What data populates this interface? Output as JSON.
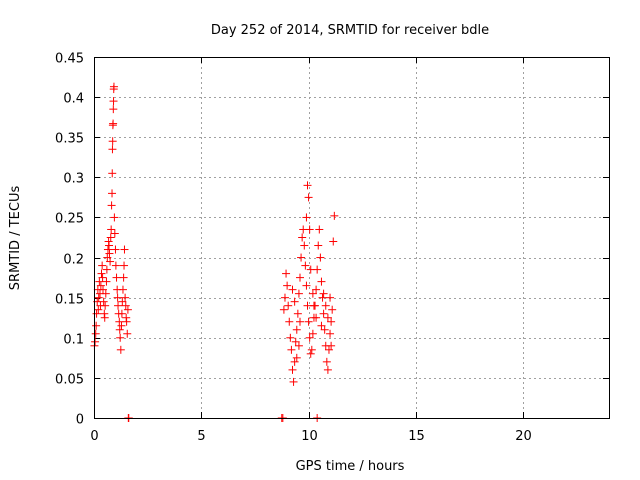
{
  "chart_data": {
    "type": "scatter",
    "title": "Day 252 of 2014, SRMTID for receiver bdle",
    "xlabel": "GPS time / hours",
    "ylabel": "SRMTID / TECUs",
    "xlim": [
      0,
      24
    ],
    "ylim": [
      0,
      0.45
    ],
    "xticks": [
      0,
      5,
      10,
      15,
      20
    ],
    "xtick_labels": [
      "0",
      "5",
      "10",
      "15",
      "20"
    ],
    "yticks": [
      0,
      0.05,
      0.1,
      0.15,
      0.2,
      0.25,
      0.3,
      0.35,
      0.4,
      0.45
    ],
    "ytick_labels": [
      "0",
      "0.05",
      "0.1",
      "0.15",
      "0.2",
      "0.25",
      "0.3",
      "0.35",
      "0.4",
      "0.45"
    ],
    "grid": true,
    "marker": "+",
    "color": "#ff0000",
    "series": [
      {
        "name": "SRMTID",
        "points": [
          [
            0.02,
            0.09
          ],
          [
            0.05,
            0.095
          ],
          [
            0.08,
            0.105
          ],
          [
            0.1,
            0.115
          ],
          [
            0.12,
            0.13
          ],
          [
            0.15,
            0.145
          ],
          [
            0.18,
            0.16
          ],
          [
            0.2,
            0.135
          ],
          [
            0.22,
            0.15
          ],
          [
            0.25,
            0.17
          ],
          [
            0.28,
            0.155
          ],
          [
            0.3,
            0.14
          ],
          [
            0.32,
            0.165
          ],
          [
            0.35,
            0.18
          ],
          [
            0.38,
            0.19
          ],
          [
            0.4,
            0.175
          ],
          [
            0.42,
            0.16
          ],
          [
            0.45,
            0.145
          ],
          [
            0.48,
            0.13
          ],
          [
            0.5,
            0.125
          ],
          [
            0.52,
            0.14
          ],
          [
            0.55,
            0.155
          ],
          [
            0.58,
            0.17
          ],
          [
            0.6,
            0.185
          ],
          [
            0.62,
            0.2
          ],
          [
            0.65,
            0.21
          ],
          [
            0.68,
            0.22
          ],
          [
            0.7,
            0.215
          ],
          [
            0.72,
            0.205
          ],
          [
            0.75,
            0.195
          ],
          [
            0.78,
            0.225
          ],
          [
            0.8,
            0.235
          ],
          [
            0.82,
            0.265
          ],
          [
            0.84,
            0.28
          ],
          [
            0.85,
            0.305
          ],
          [
            0.86,
            0.335
          ],
          [
            0.87,
            0.345
          ],
          [
            0.88,
            0.365
          ],
          [
            0.89,
            0.367
          ],
          [
            0.9,
            0.385
          ],
          [
            0.91,
            0.395
          ],
          [
            0.92,
            0.41
          ],
          [
            0.93,
            0.413
          ],
          [
            0.95,
            0.25
          ],
          [
            0.97,
            0.23
          ],
          [
            1.0,
            0.21
          ],
          [
            1.02,
            0.19
          ],
          [
            1.05,
            0.175
          ],
          [
            1.08,
            0.16
          ],
          [
            1.1,
            0.15
          ],
          [
            1.12,
            0.14
          ],
          [
            1.15,
            0.13
          ],
          [
            1.18,
            0.12
          ],
          [
            1.2,
            0.11
          ],
          [
            1.22,
            0.1
          ],
          [
            1.25,
            0.085
          ],
          [
            1.28,
            0.115
          ],
          [
            1.3,
            0.13
          ],
          [
            1.32,
            0.145
          ],
          [
            1.35,
            0.16
          ],
          [
            1.38,
            0.175
          ],
          [
            1.4,
            0.19
          ],
          [
            1.42,
            0.21
          ],
          [
            1.45,
            0.15
          ],
          [
            1.48,
            0.14
          ],
          [
            1.5,
            0.125
          ],
          [
            1.52,
            0.12
          ],
          [
            1.55,
            0.105
          ],
          [
            1.58,
            0.135
          ],
          [
            1.6,
            0.0
          ],
          [
            1.62,
            0.0
          ],
          [
            8.75,
            0.0
          ],
          [
            8.8,
            0.0
          ],
          [
            8.85,
            0.135
          ],
          [
            8.9,
            0.15
          ],
          [
            8.95,
            0.18
          ],
          [
            9.0,
            0.165
          ],
          [
            9.05,
            0.14
          ],
          [
            9.1,
            0.12
          ],
          [
            9.15,
            0.1
          ],
          [
            9.2,
            0.085
          ],
          [
            9.25,
            0.06
          ],
          [
            9.3,
            0.045
          ],
          [
            9.35,
            0.07
          ],
          [
            9.4,
            0.095
          ],
          [
            9.45,
            0.11
          ],
          [
            9.5,
            0.13
          ],
          [
            9.55,
            0.155
          ],
          [
            9.6,
            0.175
          ],
          [
            9.65,
            0.2
          ],
          [
            9.7,
            0.225
          ],
          [
            9.75,
            0.235
          ],
          [
            9.8,
            0.215
          ],
          [
            9.85,
            0.19
          ],
          [
            9.9,
            0.165
          ],
          [
            9.95,
            0.14
          ],
          [
            10.0,
            0.12
          ],
          [
            10.05,
            0.1
          ],
          [
            10.1,
            0.08
          ],
          [
            10.15,
            0.085
          ],
          [
            10.2,
            0.105
          ],
          [
            10.25,
            0.125
          ],
          [
            10.3,
            0.14
          ],
          [
            10.35,
            0.16
          ],
          [
            10.4,
            0.185
          ],
          [
            10.45,
            0.215
          ],
          [
            10.5,
            0.235
          ],
          [
            10.55,
            0.2
          ],
          [
            10.6,
            0.17
          ],
          [
            10.65,
            0.15
          ],
          [
            10.7,
            0.13
          ],
          [
            10.75,
            0.11
          ],
          [
            10.8,
            0.09
          ],
          [
            10.85,
            0.07
          ],
          [
            10.9,
            0.06
          ],
          [
            10.95,
            0.085
          ],
          [
            11.0,
            0.105
          ],
          [
            11.05,
            0.12
          ],
          [
            11.1,
            0.135
          ],
          [
            11.15,
            0.22
          ],
          [
            11.2,
            0.252
          ],
          [
            9.95,
            0.29
          ],
          [
            10.0,
            0.275
          ],
          [
            9.9,
            0.25
          ],
          [
            10.05,
            0.235
          ],
          [
            10.1,
            0.185
          ],
          [
            10.2,
            0.155
          ],
          [
            10.25,
            0.14
          ],
          [
            10.35,
            0.125
          ],
          [
            10.4,
            0.0
          ],
          [
            9.6,
            0.12
          ],
          [
            9.55,
            0.09
          ],
          [
            9.45,
            0.075
          ],
          [
            9.35,
            0.145
          ],
          [
            9.25,
            0.16
          ],
          [
            10.6,
            0.115
          ],
          [
            10.7,
            0.155
          ],
          [
            10.8,
            0.14
          ],
          [
            10.9,
            0.125
          ],
          [
            11.0,
            0.15
          ],
          [
            11.05,
            0.09
          ]
        ]
      }
    ]
  }
}
